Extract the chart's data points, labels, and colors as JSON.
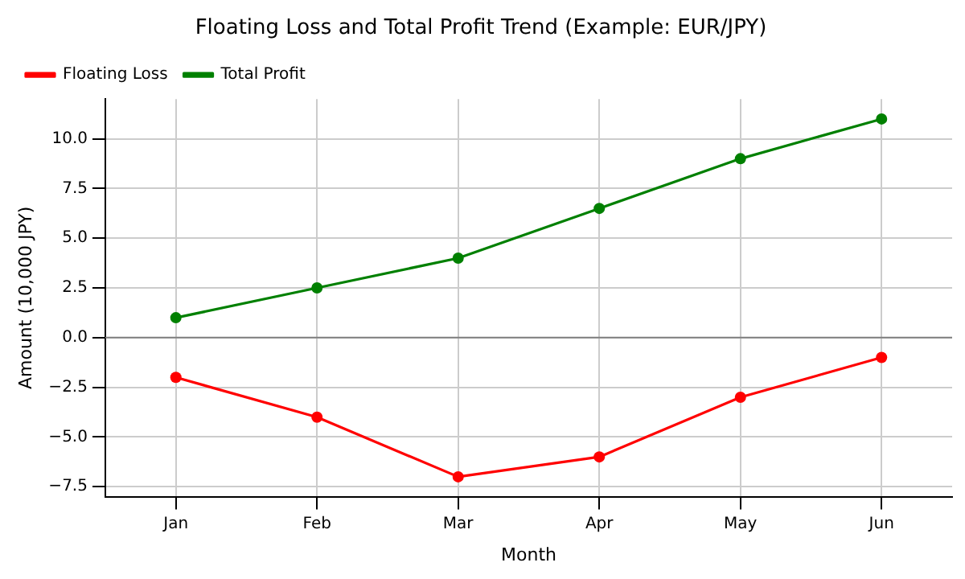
{
  "chart_data": {
    "type": "line",
    "title": "Floating Loss and Total Profit Trend (Example: EUR/JPY)",
    "xlabel": "Month",
    "ylabel": "Amount (10,000 JPY)",
    "categories": [
      "Jan",
      "Feb",
      "Mar",
      "Apr",
      "May",
      "Jun"
    ],
    "series": [
      {
        "name": "Floating Loss",
        "color": "#ff0000",
        "values": [
          -2,
          -4,
          -7,
          -6,
          -3,
          -1
        ]
      },
      {
        "name": "Total Profit",
        "color": "#008000",
        "values": [
          1,
          2.5,
          4,
          6.5,
          9,
          11
        ]
      }
    ],
    "ylim": [
      -8,
      12
    ],
    "yticks": [
      {
        "value": -7.5,
        "label": "−7.5"
      },
      {
        "value": -5,
        "label": "−5.0"
      },
      {
        "value": -2.5,
        "label": "−2.5"
      },
      {
        "value": 0,
        "label": "0.0"
      },
      {
        "value": 2.5,
        "label": "2.5"
      },
      {
        "value": 5,
        "label": "5.0"
      },
      {
        "value": 7.5,
        "label": "7.5"
      },
      {
        "value": 10,
        "label": "10.0"
      }
    ],
    "ref_lines": [
      {
        "axis": "y",
        "value": 0,
        "color": "#808080"
      }
    ],
    "grid": true,
    "legend": "top left",
    "marker": "circle",
    "line_style": "solid"
  }
}
